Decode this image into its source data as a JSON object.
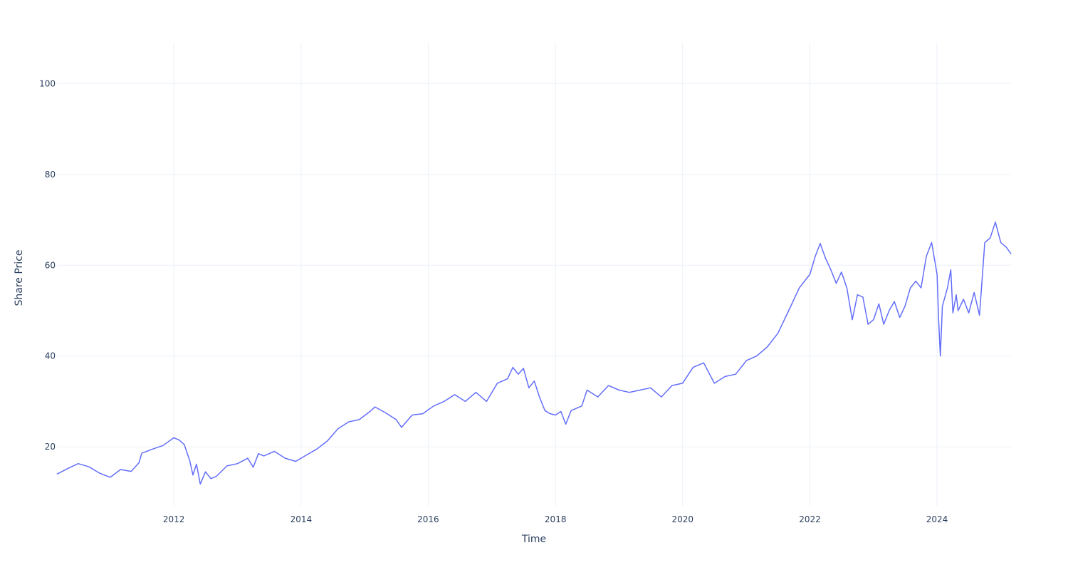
{
  "chart_data": {
    "type": "line",
    "title": "",
    "xlabel": "Time",
    "ylabel": "Share Price",
    "xlim": [
      "2010-03-01",
      "2025-03-01"
    ],
    "ylim": [
      7,
      109
    ],
    "x_ticks": [
      "2012",
      "2014",
      "2016",
      "2018",
      "2020",
      "2022",
      "2024"
    ],
    "y_ticks": [
      "20",
      "40",
      "60",
      "80",
      "100"
    ],
    "grid": true,
    "legend": "none",
    "series": [
      {
        "color": "#636efa",
        "points": [
          [
            "2010-03-01",
            14.0
          ],
          [
            "2010-05-01",
            15.2
          ],
          [
            "2010-07-01",
            16.3
          ],
          [
            "2010-09-01",
            15.6
          ],
          [
            "2010-11-01",
            14.2
          ],
          [
            "2011-01-01",
            13.3
          ],
          [
            "2011-03-01",
            15.0
          ],
          [
            "2011-05-01",
            14.6
          ],
          [
            "2011-06-15",
            16.5
          ],
          [
            "2011-07-01",
            18.6
          ],
          [
            "2011-09-01",
            19.5
          ],
          [
            "2011-11-01",
            20.3
          ],
          [
            "2012-01-01",
            22.0
          ],
          [
            "2012-02-01",
            21.5
          ],
          [
            "2012-03-01",
            20.5
          ],
          [
            "2012-04-01",
            17.0
          ],
          [
            "2012-04-20",
            13.8
          ],
          [
            "2012-05-10",
            16.2
          ],
          [
            "2012-06-01",
            11.8
          ],
          [
            "2012-07-01",
            14.5
          ],
          [
            "2012-08-01",
            13.0
          ],
          [
            "2012-09-01",
            13.5
          ],
          [
            "2012-11-01",
            15.8
          ],
          [
            "2013-01-01",
            16.3
          ],
          [
            "2013-03-01",
            17.5
          ],
          [
            "2013-04-01",
            15.5
          ],
          [
            "2013-05-01",
            18.5
          ],
          [
            "2013-06-01",
            18.0
          ],
          [
            "2013-08-01",
            19.0
          ],
          [
            "2013-10-01",
            17.5
          ],
          [
            "2013-12-01",
            16.8
          ],
          [
            "2014-02-01",
            18.2
          ],
          [
            "2014-04-01",
            19.5
          ],
          [
            "2014-06-01",
            21.3
          ],
          [
            "2014-08-01",
            24.0
          ],
          [
            "2014-10-01",
            25.5
          ],
          [
            "2014-12-01",
            26.0
          ],
          [
            "2015-02-01",
            27.8
          ],
          [
            "2015-03-01",
            28.8
          ],
          [
            "2015-05-01",
            27.5
          ],
          [
            "2015-07-01",
            26.0
          ],
          [
            "2015-08-01",
            24.3
          ],
          [
            "2015-10-01",
            27.0
          ],
          [
            "2015-12-01",
            27.3
          ],
          [
            "2016-02-01",
            29.0
          ],
          [
            "2016-04-01",
            30.0
          ],
          [
            "2016-06-01",
            31.5
          ],
          [
            "2016-08-01",
            30.0
          ],
          [
            "2016-10-01",
            32.0
          ],
          [
            "2016-12-01",
            30.0
          ],
          [
            "2017-02-01",
            34.0
          ],
          [
            "2017-04-01",
            35.0
          ],
          [
            "2017-05-01",
            37.5
          ],
          [
            "2017-06-01",
            36.0
          ],
          [
            "2017-07-01",
            37.3
          ],
          [
            "2017-08-01",
            33.0
          ],
          [
            "2017-09-01",
            34.5
          ],
          [
            "2017-10-01",
            31.0
          ],
          [
            "2017-11-01",
            28.0
          ],
          [
            "2017-12-01",
            27.3
          ],
          [
            "2018-01-01",
            27.0
          ],
          [
            "2018-02-01",
            27.8
          ],
          [
            "2018-03-01",
            25.0
          ],
          [
            "2018-04-01",
            28.0
          ],
          [
            "2018-06-01",
            29.0
          ],
          [
            "2018-07-01",
            32.5
          ],
          [
            "2018-09-01",
            31.0
          ],
          [
            "2018-11-01",
            33.5
          ],
          [
            "2019-01-01",
            32.5
          ],
          [
            "2019-03-01",
            32.0
          ],
          [
            "2019-05-01",
            32.5
          ],
          [
            "2019-07-01",
            33.0
          ],
          [
            "2019-09-01",
            31.0
          ],
          [
            "2019-11-01",
            33.5
          ],
          [
            "2020-01-01",
            34.0
          ],
          [
            "2020-03-01",
            37.5
          ],
          [
            "2020-05-01",
            38.5
          ],
          [
            "2020-07-01",
            34.0
          ],
          [
            "2020-09-01",
            35.5
          ],
          [
            "2020-11-01",
            36.0
          ],
          [
            "2021-01-01",
            39.0
          ],
          [
            "2021-03-01",
            40.0
          ],
          [
            "2021-05-01",
            42.0
          ],
          [
            "2021-07-01",
            45.0
          ],
          [
            "2021-09-01",
            50.0
          ],
          [
            "2021-11-01",
            55.0
          ],
          [
            "2022-01-01",
            58.0
          ],
          [
            "2022-02-01",
            62.0
          ],
          [
            "2022-03-01",
            64.8
          ],
          [
            "2022-04-01",
            61.5
          ],
          [
            "2022-05-01",
            59.0
          ],
          [
            "2022-06-01",
            56.0
          ],
          [
            "2022-07-01",
            58.5
          ],
          [
            "2022-08-01",
            55.0
          ],
          [
            "2022-09-01",
            48.0
          ],
          [
            "2022-10-01",
            53.5
          ],
          [
            "2022-11-01",
            53.0
          ],
          [
            "2022-12-01",
            47.0
          ],
          [
            "2023-01-01",
            48.0
          ],
          [
            "2023-02-01",
            51.5
          ],
          [
            "2023-03-01",
            47.0
          ],
          [
            "2023-04-01",
            50.0
          ],
          [
            "2023-05-01",
            52.0
          ],
          [
            "2023-06-01",
            48.5
          ],
          [
            "2023-07-01",
            51.0
          ],
          [
            "2023-08-01",
            55.0
          ],
          [
            "2023-09-01",
            56.5
          ],
          [
            "2023-10-01",
            55.0
          ],
          [
            "2023-11-01",
            62.0
          ],
          [
            "2023-12-01",
            65.0
          ],
          [
            "2024-01-01",
            58.0
          ],
          [
            "2024-01-10",
            48.0
          ],
          [
            "2024-01-20",
            40.0
          ],
          [
            "2024-02-01",
            51.0
          ],
          [
            "2024-03-01",
            55.0
          ],
          [
            "2024-03-20",
            59.0
          ],
          [
            "2024-04-01",
            49.5
          ],
          [
            "2024-04-20",
            53.5
          ],
          [
            "2024-05-01",
            50.0
          ],
          [
            "2024-06-01",
            52.5
          ],
          [
            "2024-07-01",
            49.5
          ],
          [
            "2024-08-01",
            54.0
          ],
          [
            "2024-09-01",
            49.0
          ],
          [
            "2024-10-01",
            65.0
          ],
          [
            "2024-11-01",
            66.0
          ],
          [
            "2024-12-01",
            69.5
          ],
          [
            "2025-01-01",
            65.0
          ],
          [
            "2025-02-01",
            64.0
          ],
          [
            "2025-03-01",
            62.5
          ]
        ]
      }
    ]
  }
}
